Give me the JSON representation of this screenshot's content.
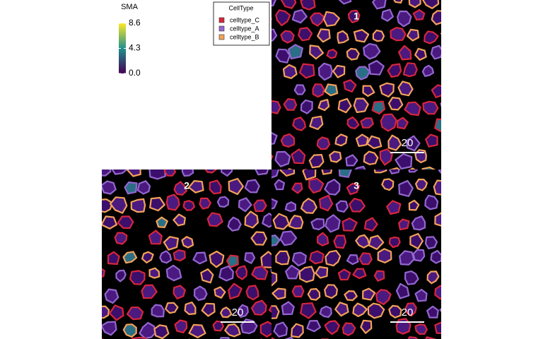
{
  "colorbar": {
    "title": "SMA",
    "range": [
      0,
      8.6
    ],
    "colors": [
      "#440154",
      "#21908d",
      "#fde725"
    ],
    "ticks": [
      8.6,
      4.3,
      {
        "value": 0,
        "label": "0.0"
      }
    ]
  },
  "legend": {
    "title": "CellType",
    "items": [
      {
        "label": "celltype_C",
        "color": "#d7263d"
      },
      {
        "label": "celltype_A",
        "color": "#9467d0"
      },
      {
        "label": "celltype_B",
        "color": "#f4a259"
      }
    ]
  },
  "panels": [
    {
      "label": "1",
      "scale_bar": "20"
    },
    {
      "label": "2",
      "scale_bar": "20"
    },
    {
      "label": "3",
      "scale_bar": "20"
    }
  ]
}
